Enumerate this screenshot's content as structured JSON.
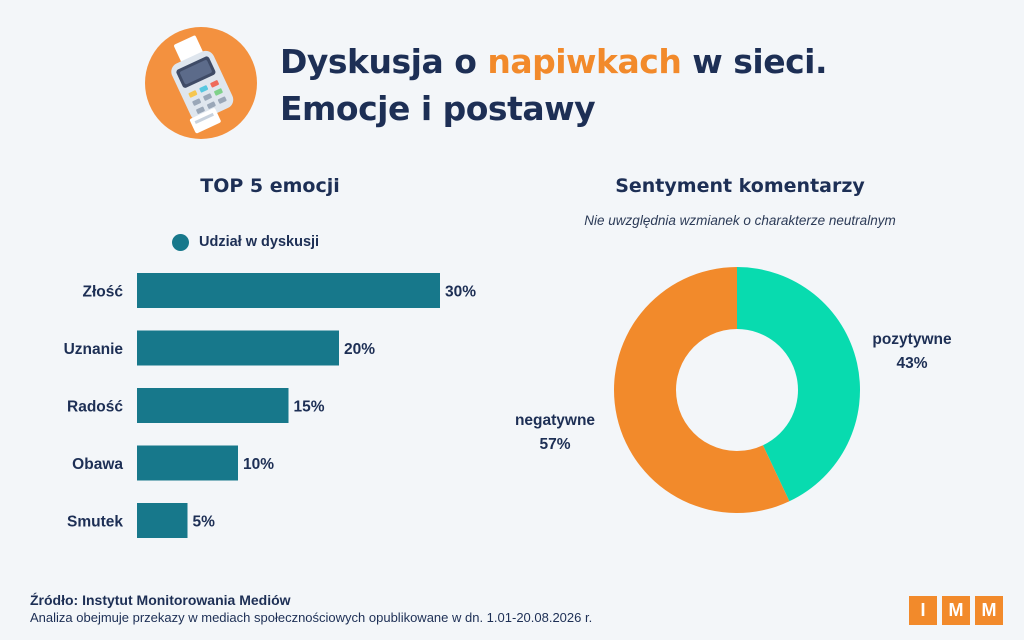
{
  "header": {
    "title_part1": "Dyskusja o ",
    "title_accent": "napiwkach",
    "title_part2": " w sieci.",
    "title_line2": "Emocje i postawy",
    "icon": "payment-terminal-icon"
  },
  "colors": {
    "background": "#f3f6f9",
    "title": "#1d2f55",
    "accent": "#f28a2b",
    "bar": "#17788b",
    "positive": "#08dbaf",
    "negative": "#f28a2b"
  },
  "chart_data": [
    {
      "type": "bar",
      "orientation": "horizontal",
      "title": "TOP 5 emocji",
      "categories": [
        "Złość",
        "Uznanie",
        "Radość",
        "Obawa",
        "Smutek"
      ],
      "series": [
        {
          "name": "Udział w dyskusji",
          "values": [
            30,
            20,
            15,
            10,
            5
          ],
          "labels": [
            "30%",
            "20%",
            "15%",
            "10%",
            "5%"
          ]
        }
      ],
      "legend": "top"
    },
    {
      "type": "pie",
      "donut": true,
      "title": "Sentyment komentarzy",
      "subtitle": "Nie uwzględnia wzmianek o charakterze neutralnym",
      "slices": [
        {
          "label": "pozytywne",
          "value": 43,
          "value_label": "43%",
          "color": "#08dbaf"
        },
        {
          "label": "negatywne",
          "value": 57,
          "value_label": "57%",
          "color": "#f28a2b"
        }
      ]
    }
  ],
  "footer": {
    "source_title": "Źródło: Instytut Monitorowania Mediów",
    "source_note": "Analiza obejmuje przekazy w mediach społecznościowych opublikowane w dn. 1.01-20.08.2026 r.",
    "logo_letters": [
      "I",
      "M",
      "M"
    ]
  }
}
